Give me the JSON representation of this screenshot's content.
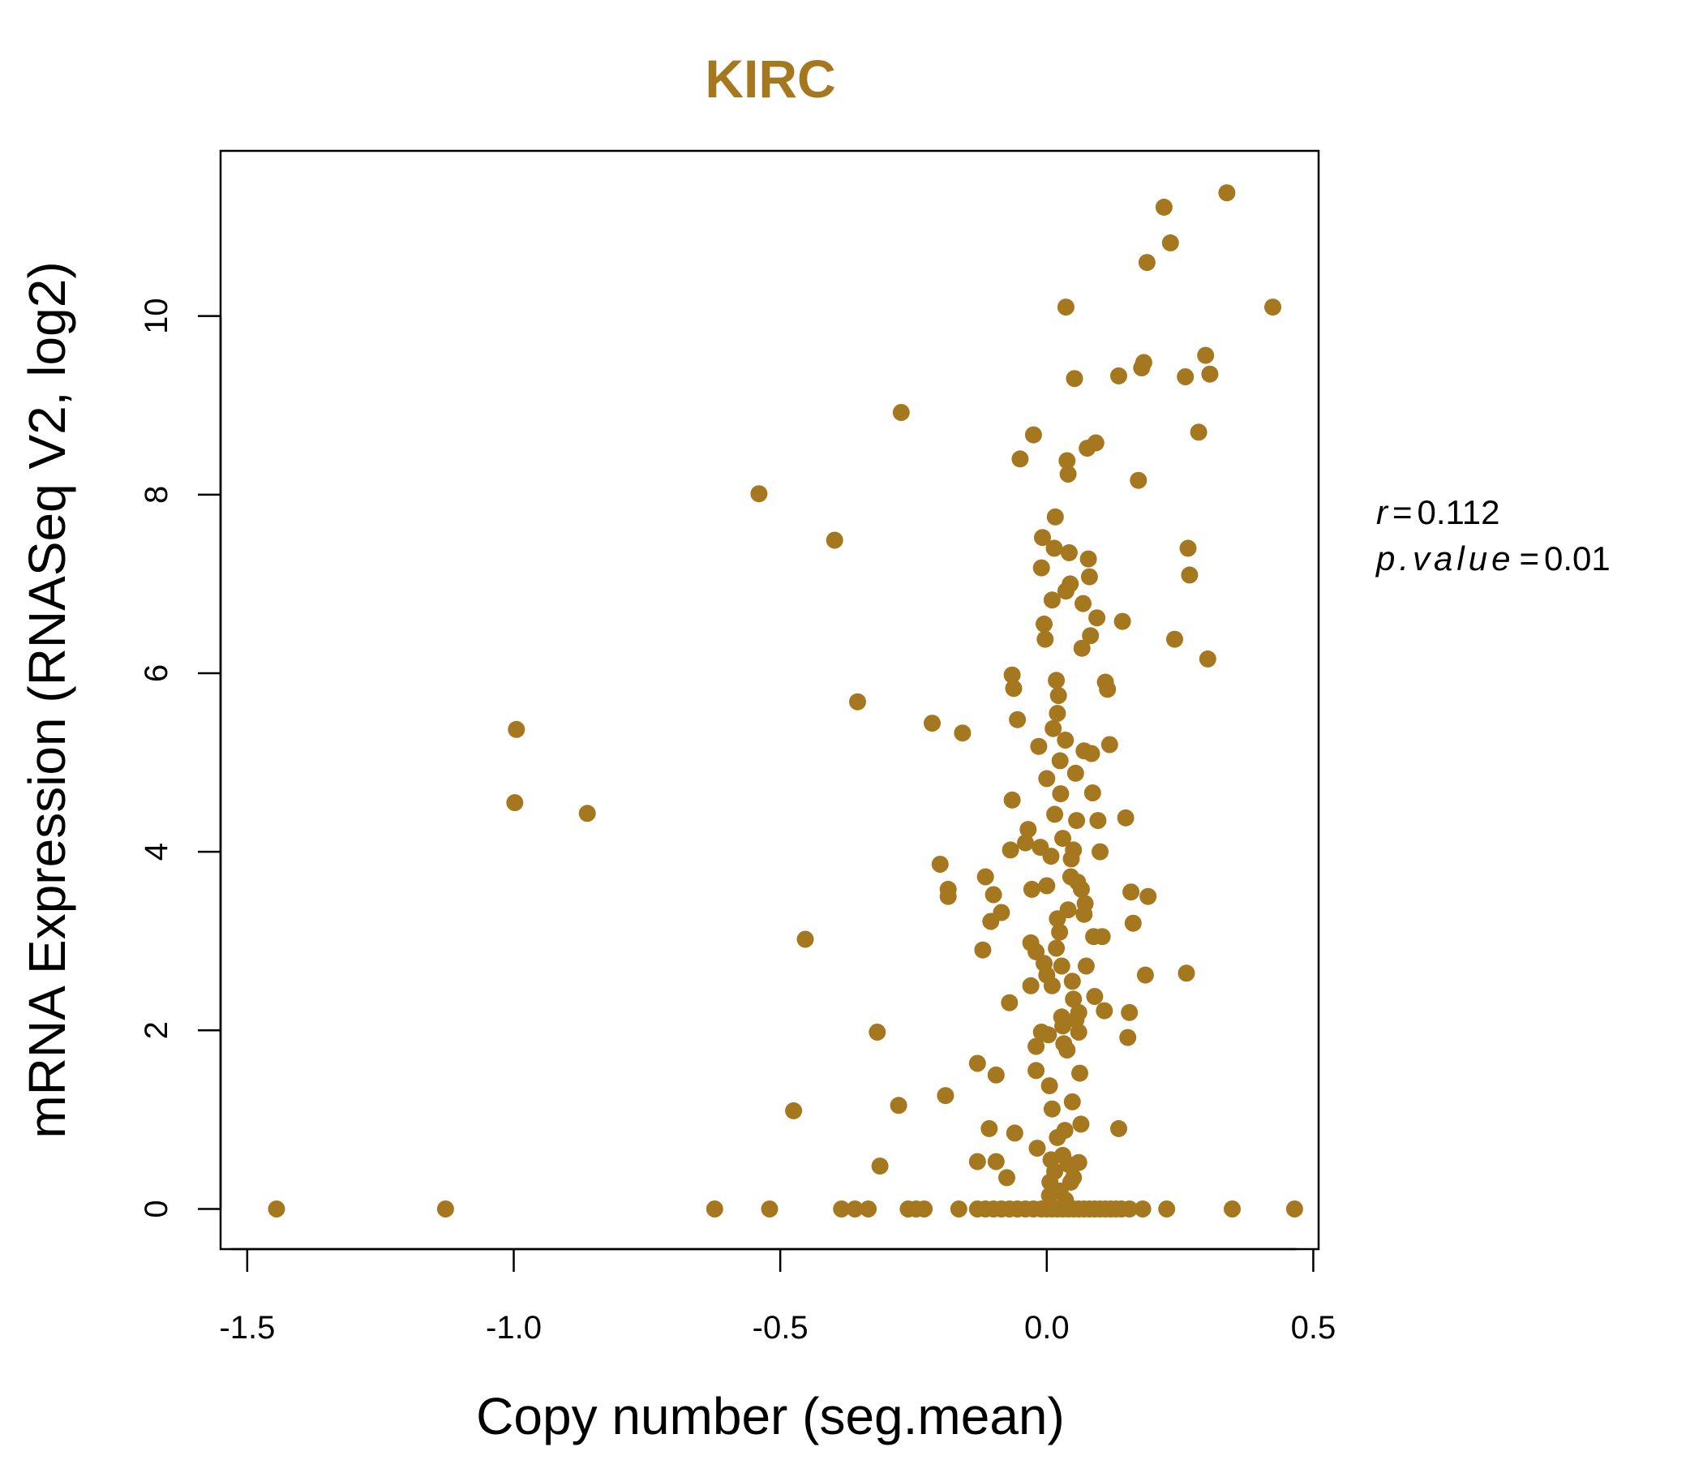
{
  "chart_data": {
    "type": "scatter",
    "title": "KIRC",
    "xlabel": "Copy number (seg.mean)",
    "ylabel": "mRNA Expression (RNASeq V2, log2)",
    "xlim": [
      -1.55,
      0.51
    ],
    "ylim": [
      -0.45,
      11.85
    ],
    "xticks": [
      -1.5,
      -1.0,
      -0.5,
      0.0,
      0.5
    ],
    "xtick_labels": [
      "-1.5",
      "-1.0",
      "-0.5",
      "0.0",
      "0.5"
    ],
    "yticks": [
      0,
      2,
      4,
      6,
      8,
      10
    ],
    "ytick_labels": [
      "0",
      "2",
      "4",
      "6",
      "8",
      "10"
    ],
    "color": "#a5771f",
    "grid": false,
    "legend": null,
    "annotation": {
      "r_label": "r",
      "r_value": "0.112",
      "p_label": "p.value",
      "p_value": "0.01"
    },
    "points": [
      [
        -1.445,
        0
      ],
      [
        -1.128,
        0
      ],
      [
        -0.623,
        0
      ],
      [
        -0.52,
        0
      ],
      [
        -0.385,
        0
      ],
      [
        -0.36,
        0
      ],
      [
        -0.335,
        0
      ],
      [
        -0.26,
        0
      ],
      [
        -0.245,
        0
      ],
      [
        -0.23,
        0
      ],
      [
        -0.165,
        0
      ],
      [
        -0.13,
        0
      ],
      [
        -0.115,
        0
      ],
      [
        -0.1,
        0
      ],
      [
        -0.085,
        0
      ],
      [
        -0.07,
        0
      ],
      [
        -0.055,
        0
      ],
      [
        -0.04,
        0
      ],
      [
        -0.025,
        0
      ],
      [
        -0.01,
        0
      ],
      [
        0.0,
        0
      ],
      [
        0.01,
        0
      ],
      [
        0.02,
        0
      ],
      [
        0.03,
        0
      ],
      [
        0.04,
        0
      ],
      [
        0.05,
        0
      ],
      [
        0.06,
        0
      ],
      [
        0.07,
        0
      ],
      [
        0.08,
        0
      ],
      [
        0.09,
        0
      ],
      [
        0.1,
        0
      ],
      [
        0.11,
        0
      ],
      [
        0.12,
        0
      ],
      [
        0.13,
        0
      ],
      [
        0.14,
        0
      ],
      [
        0.155,
        0
      ],
      [
        0.18,
        0
      ],
      [
        0.225,
        0
      ],
      [
        0.348,
        0
      ],
      [
        0.465,
        0
      ],
      [
        -0.995,
        5.37
      ],
      [
        -0.998,
        4.55
      ],
      [
        -0.862,
        4.43
      ],
      [
        -0.54,
        8.01
      ],
      [
        -0.398,
        7.49
      ],
      [
        -0.453,
        3.02
      ],
      [
        -0.355,
        5.68
      ],
      [
        -0.318,
        1.98
      ],
      [
        -0.475,
        1.1
      ],
      [
        -0.278,
        1.16
      ],
      [
        -0.313,
        0.48
      ],
      [
        -0.273,
        8.92
      ],
      [
        -0.215,
        5.44
      ],
      [
        -0.158,
        5.33
      ],
      [
        -0.2,
        3.86
      ],
      [
        -0.185,
        3.58
      ],
      [
        -0.185,
        3.5
      ],
      [
        -0.19,
        1.27
      ],
      [
        -0.13,
        1.63
      ],
      [
        -0.13,
        0.53
      ],
      [
        -0.12,
        2.9
      ],
      [
        -0.115,
        3.72
      ],
      [
        -0.105,
        3.22
      ],
      [
        -0.1,
        3.52
      ],
      [
        -0.095,
        1.5
      ],
      [
        -0.095,
        0.53
      ],
      [
        -0.085,
        3.32
      ],
      [
        -0.108,
        0.9
      ],
      [
        -0.07,
        2.31
      ],
      [
        -0.068,
        4.02
      ],
      [
        -0.065,
        4.58
      ],
      [
        -0.065,
        5.98
      ],
      [
        -0.062,
        5.83
      ],
      [
        -0.06,
        0.85
      ],
      [
        -0.055,
        5.48
      ],
      [
        -0.05,
        8.4
      ],
      [
        -0.075,
        0.35
      ],
      [
        -0.04,
        4.1
      ],
      [
        -0.035,
        4.25
      ],
      [
        -0.03,
        2.5
      ],
      [
        -0.03,
        2.98
      ],
      [
        -0.028,
        3.58
      ],
      [
        -0.025,
        8.67
      ],
      [
        -0.02,
        2.88
      ],
      [
        -0.02,
        1.55
      ],
      [
        -0.018,
        0.68
      ],
      [
        -0.015,
        5.18
      ],
      [
        -0.012,
        4.05
      ],
      [
        -0.01,
        7.18
      ],
      [
        -0.008,
        7.52
      ],
      [
        -0.005,
        6.55
      ],
      [
        -0.003,
        6.38
      ],
      [
        0.0,
        4.82
      ],
      [
        0.003,
        1.95
      ],
      [
        0.005,
        1.38
      ],
      [
        0.006,
        0.3
      ],
      [
        0.008,
        0.55
      ],
      [
        0.01,
        6.82
      ],
      [
        0.012,
        5.38
      ],
      [
        0.014,
        7.4
      ],
      [
        0.016,
        7.75
      ],
      [
        0.018,
        5.92
      ],
      [
        0.02,
        5.55
      ],
      [
        0.022,
        5.75
      ],
      [
        0.024,
        3.1
      ],
      [
        0.026,
        4.65
      ],
      [
        0.028,
        2.72
      ],
      [
        0.03,
        2.05
      ],
      [
        0.032,
        1.85
      ],
      [
        0.034,
        0.88
      ],
      [
        0.036,
        6.92
      ],
      [
        0.038,
        8.38
      ],
      [
        0.04,
        8.23
      ],
      [
        0.036,
        10.1
      ],
      [
        0.042,
        7.35
      ],
      [
        0.044,
        7.0
      ],
      [
        0.046,
        3.92
      ],
      [
        0.048,
        1.2
      ],
      [
        0.05,
        2.35
      ],
      [
        0.052,
        9.3
      ],
      [
        0.054,
        4.88
      ],
      [
        0.056,
        4.35
      ],
      [
        0.058,
        3.66
      ],
      [
        0.06,
        2.2
      ],
      [
        0.062,
        1.52
      ],
      [
        0.064,
        0.95
      ],
      [
        0.066,
        6.28
      ],
      [
        0.068,
        6.78
      ],
      [
        0.07,
        5.13
      ],
      [
        0.072,
        3.42
      ],
      [
        0.074,
        2.72
      ],
      [
        0.076,
        8.52
      ],
      [
        0.078,
        7.28
      ],
      [
        0.08,
        7.08
      ],
      [
        0.082,
        6.42
      ],
      [
        0.084,
        5.1
      ],
      [
        0.086,
        4.66
      ],
      [
        0.088,
        3.05
      ],
      [
        0.09,
        2.38
      ],
      [
        0.092,
        8.58
      ],
      [
        0.094,
        6.62
      ],
      [
        0.096,
        4.35
      ],
      [
        0.1,
        4.0
      ],
      [
        0.104,
        3.05
      ],
      [
        0.108,
        2.22
      ],
      [
        0.11,
        5.9
      ],
      [
        0.114,
        5.82
      ],
      [
        0.118,
        5.2
      ],
      [
        0.135,
        9.33
      ],
      [
        0.135,
        0.9
      ],
      [
        0.142,
        6.58
      ],
      [
        0.148,
        4.38
      ],
      [
        0.152,
        1.92
      ],
      [
        0.155,
        2.2
      ],
      [
        0.158,
        3.55
      ],
      [
        0.162,
        3.2
      ],
      [
        0.172,
        8.16
      ],
      [
        0.178,
        9.42
      ],
      [
        0.182,
        9.48
      ],
      [
        0.185,
        2.62
      ],
      [
        0.188,
        10.6
      ],
      [
        0.19,
        3.5
      ],
      [
        0.22,
        11.22
      ],
      [
        0.232,
        10.82
      ],
      [
        0.24,
        6.38
      ],
      [
        0.26,
        9.32
      ],
      [
        0.262,
        2.64
      ],
      [
        0.265,
        7.4
      ],
      [
        0.268,
        7.1
      ],
      [
        0.285,
        8.7
      ],
      [
        0.298,
        9.56
      ],
      [
        0.302,
        6.16
      ],
      [
        0.306,
        9.35
      ],
      [
        0.338,
        11.38
      ],
      [
        0.424,
        10.1
      ],
      [
        -0.02,
        1.82
      ],
      [
        0.0,
        3.62
      ],
      [
        0.01,
        2.5
      ],
      [
        0.02,
        3.25
      ],
      [
        0.03,
        4.15
      ],
      [
        0.04,
        3.35
      ],
      [
        0.05,
        4.02
      ],
      [
        0.06,
        1.98
      ],
      [
        0.07,
        3.3
      ],
      [
        0.03,
        0.6
      ],
      [
        0.02,
        0.8
      ],
      [
        0.04,
        0.5
      ],
      [
        0.05,
        0.35
      ],
      [
        0.06,
        0.52
      ],
      [
        -0.01,
        1.98
      ],
      [
        0.0,
        2.62
      ],
      [
        0.01,
        1.12
      ],
      [
        0.015,
        4.42
      ],
      [
        0.025,
        5.02
      ],
      [
        0.035,
        5.25
      ],
      [
        0.045,
        3.72
      ],
      [
        0.055,
        2.12
      ],
      [
        0.065,
        3.58
      ],
      [
        0.005,
        0.15
      ],
      [
        0.015,
        0.42
      ],
      [
        0.025,
        0.2
      ],
      [
        0.035,
        0.1
      ],
      [
        0.045,
        0.3
      ],
      [
        -0.005,
        2.75
      ],
      [
        0.008,
        3.95
      ],
      [
        0.018,
        2.92
      ],
      [
        0.028,
        2.15
      ],
      [
        0.038,
        1.78
      ],
      [
        0.048,
        2.55
      ]
    ]
  }
}
